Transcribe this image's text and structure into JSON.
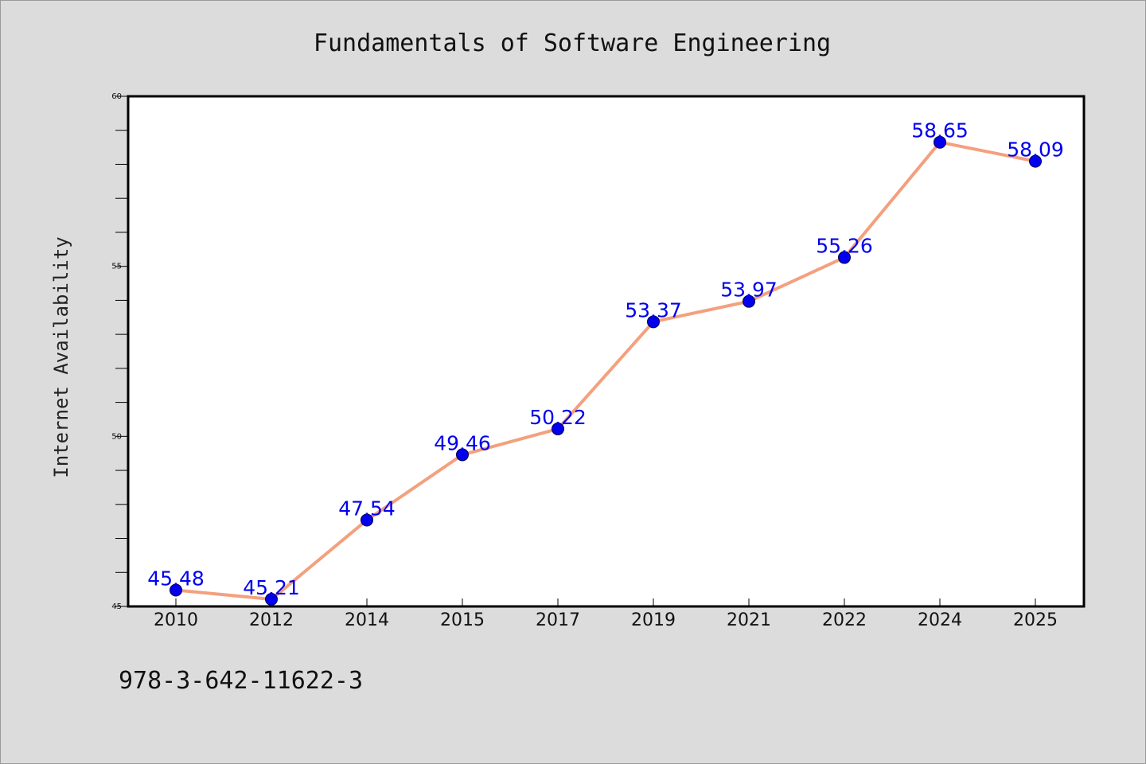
{
  "chart_data": {
    "type": "line",
    "title": "Fundamentals of Software Engineering",
    "xlabel": "",
    "ylabel": "Internet Availability",
    "categories": [
      "2010",
      "2012",
      "2014",
      "2015",
      "2017",
      "2019",
      "2021",
      "2022",
      "2024",
      "2025"
    ],
    "series": [
      {
        "values": [
          45.48,
          45.21,
          47.54,
          49.46,
          50.22,
          53.37,
          53.97,
          55.26,
          58.65,
          58.09
        ],
        "data_labels": [
          "45.48",
          "45.21",
          "47.54",
          "49.46",
          "50.22",
          "53.37",
          "53.97",
          "55.26",
          "58.65",
          "58.09"
        ]
      }
    ],
    "ylim": [
      45,
      60
    ],
    "yticks": [
      45,
      50,
      55,
      60
    ],
    "grid": false,
    "colors": {
      "line": "#f4a07e",
      "marker": "#0000ee",
      "data_label": "#0000ee",
      "background": "#dcdcdc",
      "plot_background": "#ffffff"
    }
  },
  "footer": {
    "isbn": "978-3-642-11622-3"
  }
}
